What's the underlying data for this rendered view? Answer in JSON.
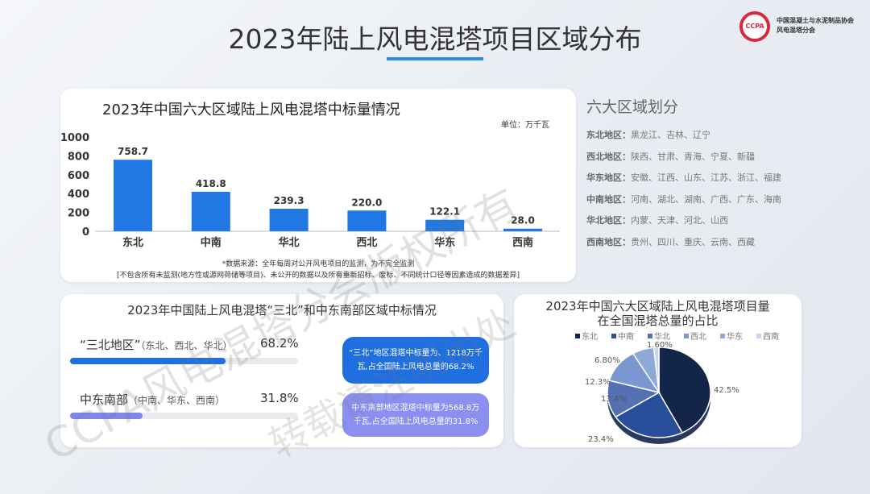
{
  "title": "2023年陆上风电混塔项目区域分布",
  "logo": {
    "badge": "CCPA",
    "org_line1": "中国混凝土与水泥制品协会",
    "org_line2": "风电混塔分会"
  },
  "watermark": [
    "CCPA风电混塔分会版权所有",
    "转载请注明出处"
  ],
  "bar_section": {
    "unit": "单位：万千瓦",
    "note_line1": "*数据来源：全年每周对公开风电项目的监测，为不完全监测",
    "note_line2": "[不包含所有未监测(地方性或源网荷储等项目)、未公开的数据以及所有重新招标、废标、不同统计口径等因素造成的数据差异]"
  },
  "regions": {
    "title": "六大区域划分",
    "items": [
      {
        "name": "东北地区：",
        "provinces": "黑龙江、吉林、辽宁"
      },
      {
        "name": "西北地区：",
        "provinces": "陕西、甘肃、青海、宁夏、新疆"
      },
      {
        "name": "华东地区：",
        "provinces": "安徽、江西、山东、江苏、浙江、福建"
      },
      {
        "name": "中南地区：",
        "provinces": "河南、湖北、湖南、广西、广东、海南"
      },
      {
        "name": "华北地区：",
        "provinces": "内蒙、天津、河北、山西"
      },
      {
        "name": "西南地区：",
        "provinces": "贵州、四川、重庆、云南、西藏"
      }
    ]
  },
  "sanbei_section": {
    "title": "2023年中国陆上风电混塔“三北”和中东南部区域中标情况",
    "rows": [
      {
        "label": "“三北地区”",
        "sub": "（东北、西北、华北）",
        "percent_label": "68.2%",
        "value": 68.2,
        "color": "#1f6fe0",
        "bubble": "“三北”地区混塔中标量为、1218万千瓦,占全国陆上风电总量的68.2%",
        "bubble_color": "#1f6fe0"
      },
      {
        "label": "中东南部",
        "sub": "（中南、华东、西南）",
        "percent_label": "31.8%",
        "value": 31.8,
        "color": "#7f86ee",
        "bubble": "中东南部地区混塔中标量为568.8万千瓦,占全国陆上风电总量的31.8%",
        "bubble_color": "#8a8ff0"
      }
    ]
  },
  "chart_data": [
    {
      "type": "bar",
      "title": "2023年中国六大区域陆上风电混塔中标量情况",
      "categories": [
        "东北",
        "中南",
        "华北",
        "西北",
        "华东",
        "西南"
      ],
      "values": [
        758.7,
        418.8,
        239.3,
        220.0,
        122.1,
        28.0
      ],
      "value_labels": [
        "758.7",
        "418.8",
        "239.3",
        "220.0",
        "122.1",
        "28.0"
      ],
      "ylim": [
        0,
        1000
      ],
      "yticks": [
        "0",
        "200",
        "400",
        "600",
        "800",
        "1000"
      ],
      "bar_color": "#1f78e3",
      "grid": false
    },
    {
      "type": "pie",
      "title_line1": "2023年中国六大区域陆上风电混塔项目量",
      "title_line2": "在全国混塔总量的占比",
      "categories": [
        "东北",
        "中南",
        "华北",
        "西北",
        "华东",
        "西南"
      ],
      "values": [
        42.5,
        23.4,
        13.4,
        12.3,
        6.8,
        1.6
      ],
      "value_labels": [
        "42.5%",
        "23.4%",
        "13.4%",
        "12.3%",
        "6.80%",
        "1.60%"
      ],
      "colors": [
        "#14254a",
        "#2a4f9a",
        "#5471b4",
        "#7b97d1",
        "#8fa9d6",
        "#c5d6ef"
      ],
      "legend": "top"
    }
  ]
}
